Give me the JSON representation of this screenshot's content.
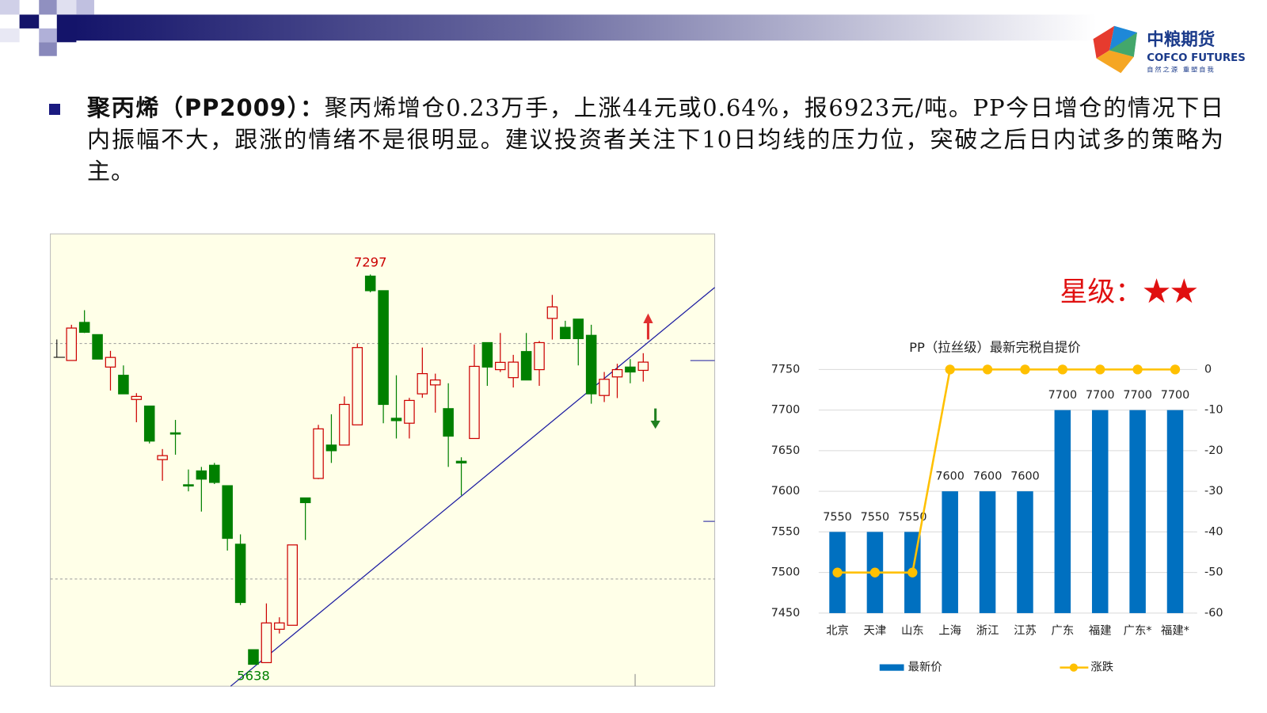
{
  "logo": {
    "name": "中粮期货",
    "english": "COFCO FUTURES",
    "slogan": "自然之源 重塑自我"
  },
  "paragraph": {
    "lead": "聚丙烯（PP2009）：",
    "text": "聚丙烯增仓0.23万手，上涨44元或0.64%，报6923元/吨。PP今日增仓的情况下日内振幅不大，跟涨的情绪不是很明显。建议投资者关注下10日均线的压力位，突破之后日内试多的策略为主。"
  },
  "rating": "星级：★★",
  "chart_data": [
    {
      "type": "candlestick",
      "up_color": "#cc0000",
      "down_color": "#008000",
      "open": [
        6931,
        7093,
        7041,
        6903,
        6868,
        6765,
        6737,
        6509,
        6623,
        6402,
        6461,
        6485,
        6398,
        6149,
        5700,
        5645,
        5787,
        5804,
        6346,
        6429,
        6571,
        6571,
        6657,
        7290,
        7228,
        6685,
        6664,
        6789,
        6827,
        6726,
        6502,
        6599,
        7007,
        6892,
        6858,
        6969,
        6892,
        7110,
        7072,
        7107,
        7038,
        6782,
        6861,
        6903,
        6889
      ],
      "high": [
        7083,
        7145,
        7041,
        6972,
        6910,
        6792,
        6737,
        6554,
        6678,
        6467,
        6478,
        6495,
        6398,
        6191,
        5700,
        5897,
        5838,
        6146,
        6346,
        6657,
        6702,
        6778,
        7003,
        7297,
        7228,
        6868,
        6772,
        6986,
        6875,
        6834,
        6519,
        6999,
        7007,
        7048,
        6955,
        7048,
        7014,
        7210,
        7100,
        7107,
        7083,
        6882,
        6917,
        6937,
        6962
      ],
      "low": [
        6931,
        7048,
        6937,
        6803,
        6789,
        6668,
        6578,
        6419,
        6530,
        6374,
        6288,
        6405,
        6122,
        5890,
        5638,
        5645,
        5769,
        5804,
        6167,
        6426,
        6495,
        6571,
        6657,
        7221,
        6664,
        6599,
        6599,
        6772,
        6709,
        6478,
        6357,
        6599,
        6823,
        6882,
        6816,
        6848,
        6823,
        7020,
        7024,
        6910,
        6747,
        6754,
        6771,
        6834,
        6841
      ],
      "close": [
        7069,
        7051,
        6937,
        6944,
        6789,
        6778,
        6588,
        6526,
        6623,
        6402,
        6426,
        6412,
        6174,
        5901,
        5638,
        5814,
        5814,
        6146,
        6326,
        6640,
        6547,
        6744,
        6986,
        7228,
        6744,
        6675,
        6761,
        6875,
        6848,
        6609,
        6495,
        6906,
        6903,
        6923,
        6924,
        6848,
        7007,
        7159,
        7024,
        7024,
        6789,
        6851,
        6892,
        6882,
        6924
      ]
    },
    {
      "type": "bar_line",
      "title": "PP（拉丝级）最新完税自提价",
      "categories": [
        "北京",
        "天津",
        "山东",
        "上海",
        "浙江",
        "江苏",
        "广东",
        "福建",
        "广东*",
        "福建*"
      ],
      "series": [
        {
          "name": "最新价",
          "type": "bar",
          "color": "#0070c0",
          "values": [
            7550,
            7550,
            7550,
            7600,
            7600,
            7600,
            7700,
            7700,
            7700,
            7700
          ]
        },
        {
          "name": "涨跌",
          "type": "line",
          "axis": "y2",
          "color": "#ffc000",
          "values": [
            -50,
            -50,
            -50,
            0,
            0,
            0,
            0,
            0,
            0,
            0
          ]
        }
      ],
      "ylim": [
        7450,
        7750
      ],
      "yticks": [
        7450,
        7500,
        7550,
        7600,
        7650,
        7700,
        7750
      ],
      "y2lim": [
        -60,
        0
      ],
      "y2ticks": [
        -60,
        -50,
        -40,
        -30,
        -20,
        -10,
        0
      ],
      "grid": true,
      "legend": "bottom"
    }
  ]
}
